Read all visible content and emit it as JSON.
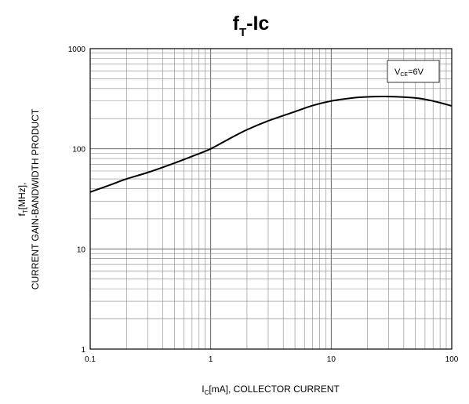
{
  "chart_data": {
    "type": "line",
    "title": {
      "main": "f",
      "sub": "T",
      "rest": "-Ic"
    },
    "xlabel": {
      "main": "I",
      "sub": "C",
      "rest": "[mA], COLLECTOR CURRENT"
    },
    "ylabel": {
      "line1_main": "f",
      "line1_sub": "T",
      "line1_rest": "[MHz],",
      "line2": "CURRENT GAIN-BANDWIDTH PRODUCT"
    },
    "xscale": "log",
    "yscale": "log",
    "xlim": [
      0.1,
      100
    ],
    "ylim": [
      1,
      1000
    ],
    "grid": true,
    "x_tick_labels": [
      "0.1",
      "1",
      "10",
      "100"
    ],
    "y_tick_labels": [
      "1",
      "10",
      "100",
      "1000"
    ],
    "legend": {
      "main": "V",
      "sub": "CE",
      "rest": "=6V",
      "placement": "top-right"
    },
    "series": [
      {
        "x": [
          0.1,
          0.15,
          0.2,
          0.3,
          0.5,
          0.7,
          1,
          1.5,
          2,
          3,
          5,
          7,
          10,
          15,
          20,
          30,
          50,
          70,
          100
        ],
        "y": [
          37,
          44,
          50,
          58,
          72,
          84,
          100,
          130,
          155,
          190,
          235,
          270,
          300,
          322,
          330,
          332,
          322,
          300,
          268
        ]
      }
    ]
  }
}
